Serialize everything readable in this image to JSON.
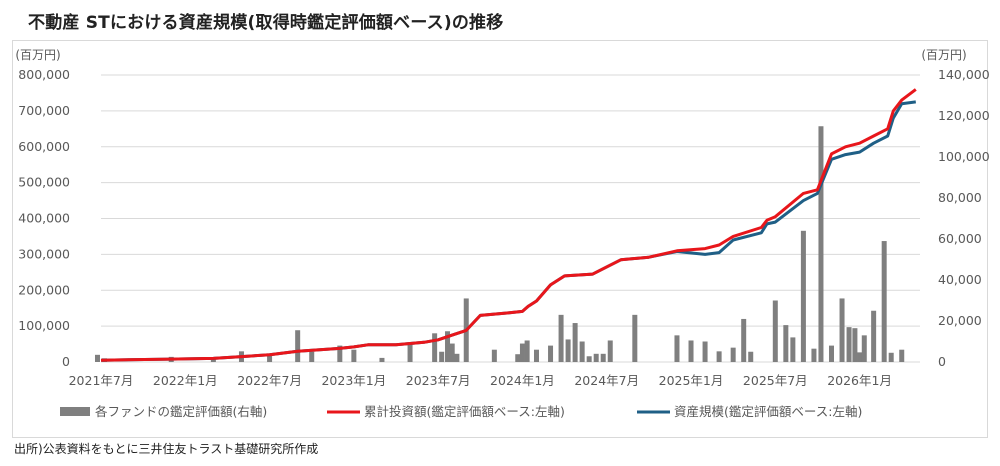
{
  "title": "不動産 STにおける資産規模(取得時鑑定評価額ベース)の推移",
  "source": "出所)公表資料をもとに三井住友トラスト基礎研究所作成",
  "colors": {
    "bars": "#7f7f7f",
    "cumulative_line": "#e8161b",
    "asset_line": "#1f5f86",
    "grid": "#d9d9d9"
  },
  "chart_data": {
    "type": "bar+line",
    "left_unit_label": "(百万円)",
    "right_unit_label": "(百万円)",
    "left_axis": {
      "min": 0,
      "max": 800000,
      "ticks": [
        "0",
        "100,000",
        "200,000",
        "300,000",
        "400,000",
        "500,000",
        "600,000",
        "700,000",
        "800,000"
      ]
    },
    "right_axis": {
      "min": 0,
      "max": 140000,
      "ticks": [
        "0",
        "20,000",
        "40,000",
        "60,000",
        "80,000",
        "100,000",
        "120,000",
        "140,000"
      ]
    },
    "x_axis": {
      "start": "2021-07",
      "end": "2026-04",
      "tick_labels": [
        "2021年7月",
        "2022年1月",
        "2022年7月",
        "2023年1月",
        "2023年7月",
        "2024年1月",
        "2024年7月",
        "2025年1月",
        "2025年7月",
        "2026年1月"
      ]
    },
    "legend": [
      "各ファンドの鑑定評価額(右軸)",
      "累計投資額(鑑定評価額ベース:左軸)",
      "資産規模(鑑定評価額ベース:左軸)"
    ],
    "legend_position": "bottom",
    "bars_right_axis": [
      [
        "2021-07",
        3500
      ],
      [
        "2021-07",
        1800
      ],
      [
        "2021-12",
        2500
      ],
      [
        "2022-03",
        1500
      ],
      [
        "2022-05",
        5200
      ],
      [
        "2022-07",
        4000
      ],
      [
        "2022-09",
        15500
      ],
      [
        "2022-10",
        5000
      ],
      [
        "2022-12",
        8000
      ],
      [
        "2023-01",
        6000
      ],
      [
        "2023-03",
        2000
      ],
      [
        "2023-05",
        8800
      ],
      [
        "2023-07",
        14000
      ],
      [
        "2023-07",
        5000
      ],
      [
        "2023-08",
        15000
      ],
      [
        "2023-08",
        9000
      ],
      [
        "2023-08",
        4000
      ],
      [
        "2023-09",
        31000
      ],
      [
        "2023-11",
        6000
      ],
      [
        "2024-01",
        3800
      ],
      [
        "2024-01",
        9000
      ],
      [
        "2024-01",
        10500
      ],
      [
        "2024-02",
        6000
      ],
      [
        "2024-03",
        8000
      ],
      [
        "2024-04",
        23000
      ],
      [
        "2024-04",
        11000
      ],
      [
        "2024-05",
        19000
      ],
      [
        "2024-05",
        10000
      ],
      [
        "2024-06",
        2800
      ],
      [
        "2024-06",
        4000
      ],
      [
        "2024-07",
        4000
      ],
      [
        "2024-07",
        10500
      ],
      [
        "2024-09",
        23000
      ],
      [
        "2024-12",
        13000
      ],
      [
        "2025-01",
        10500
      ],
      [
        "2025-02",
        10000
      ],
      [
        "2025-03",
        5200
      ],
      [
        "2025-04",
        7000
      ],
      [
        "2025-05",
        21000
      ],
      [
        "2025-05",
        5000
      ],
      [
        "2025-07",
        30000
      ],
      [
        "2025-08",
        18000
      ],
      [
        "2025-08",
        12000
      ],
      [
        "2025-09",
        64000
      ],
      [
        "2025-10",
        6500
      ],
      [
        "2025-10",
        115000
      ],
      [
        "2025-11",
        8000
      ],
      [
        "2025-12",
        31000
      ],
      [
        "2025-12",
        17000
      ],
      [
        "2026-01",
        16500
      ],
      [
        "2026-01",
        4700
      ],
      [
        "2026-01",
        13000
      ],
      [
        "2026-02",
        25000
      ],
      [
        "2026-03",
        59000
      ],
      [
        "2026-03",
        4500
      ],
      [
        "2026-04",
        6000
      ]
    ],
    "series": [
      {
        "name": "累計投資額(鑑定評価額ベース:左軸)",
        "points": [
          [
            "2021-07",
            5000
          ],
          [
            "2021-12",
            8000
          ],
          [
            "2022-03",
            10000
          ],
          [
            "2022-05",
            15000
          ],
          [
            "2022-07",
            20000
          ],
          [
            "2022-09",
            30000
          ],
          [
            "2022-12",
            38000
          ],
          [
            "2023-01",
            42000
          ],
          [
            "2023-02",
            48000
          ],
          [
            "2023-04",
            48000
          ],
          [
            "2023-06",
            55000
          ],
          [
            "2023-07",
            62000
          ],
          [
            "2023-08",
            75000
          ],
          [
            "2023-09",
            88000
          ],
          [
            "2023-10",
            130000
          ],
          [
            "2023-12",
            137000
          ],
          [
            "2024-01",
            141000
          ],
          [
            "2024-01",
            155000
          ],
          [
            "2024-02",
            170000
          ],
          [
            "2024-03",
            215000
          ],
          [
            "2024-04",
            240000
          ],
          [
            "2024-06",
            245000
          ],
          [
            "2024-07",
            265000
          ],
          [
            "2024-08",
            285000
          ],
          [
            "2024-10",
            292000
          ],
          [
            "2024-12",
            310000
          ],
          [
            "2025-02",
            316000
          ],
          [
            "2025-03",
            326000
          ],
          [
            "2025-04",
            350000
          ],
          [
            "2025-06",
            375000
          ],
          [
            "2025-06",
            395000
          ],
          [
            "2025-07",
            405000
          ],
          [
            "2025-09",
            470000
          ],
          [
            "2025-10",
            480000
          ],
          [
            "2025-11",
            580000
          ],
          [
            "2025-12",
            600000
          ],
          [
            "2026-01",
            610000
          ],
          [
            "2026-02",
            630000
          ],
          [
            "2026-03",
            650000
          ],
          [
            "2026-03",
            700000
          ],
          [
            "2026-04",
            730000
          ],
          [
            "2026-05",
            760000
          ]
        ]
      },
      {
        "name": "資産規模(鑑定評価額ベース:左軸)",
        "points": [
          [
            "2021-07",
            5000
          ],
          [
            "2021-12",
            8000
          ],
          [
            "2022-03",
            10000
          ],
          [
            "2022-05",
            15000
          ],
          [
            "2022-07",
            20000
          ],
          [
            "2022-09",
            30000
          ],
          [
            "2022-12",
            38000
          ],
          [
            "2023-01",
            42000
          ],
          [
            "2023-02",
            48000
          ],
          [
            "2023-04",
            48000
          ],
          [
            "2023-06",
            55000
          ],
          [
            "2023-07",
            62000
          ],
          [
            "2023-08",
            75000
          ],
          [
            "2023-09",
            88000
          ],
          [
            "2023-10",
            130000
          ],
          [
            "2023-12",
            137000
          ],
          [
            "2024-01",
            141000
          ],
          [
            "2024-01",
            155000
          ],
          [
            "2024-02",
            170000
          ],
          [
            "2024-03",
            215000
          ],
          [
            "2024-04",
            240000
          ],
          [
            "2024-06",
            245000
          ],
          [
            "2024-07",
            265000
          ],
          [
            "2024-08",
            285000
          ],
          [
            "2024-10",
            292000
          ],
          [
            "2024-12",
            308000
          ],
          [
            "2025-02",
            300000
          ],
          [
            "2025-03",
            305000
          ],
          [
            "2025-04",
            340000
          ],
          [
            "2025-06",
            360000
          ],
          [
            "2025-06",
            385000
          ],
          [
            "2025-07",
            390000
          ],
          [
            "2025-09",
            450000
          ],
          [
            "2025-10",
            470000
          ],
          [
            "2025-11",
            565000
          ],
          [
            "2025-12",
            578000
          ],
          [
            "2026-01",
            585000
          ],
          [
            "2026-02",
            610000
          ],
          [
            "2026-03",
            630000
          ],
          [
            "2026-03",
            680000
          ],
          [
            "2026-04",
            720000
          ],
          [
            "2026-05",
            725000
          ]
        ]
      }
    ]
  }
}
